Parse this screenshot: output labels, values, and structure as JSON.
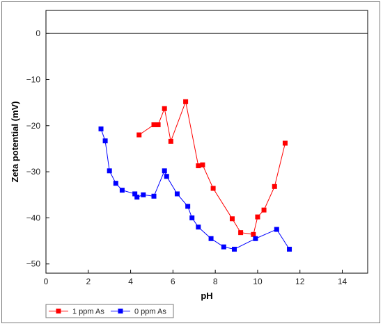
{
  "chart_data": {
    "type": "line",
    "xlabel": "pH",
    "ylabel": "Zeta potential (mV)",
    "xlim": [
      0,
      15.2
    ],
    "ylim": [
      -52,
      5
    ],
    "xticks": [
      0,
      2,
      4,
      6,
      8,
      10,
      12,
      14
    ],
    "yticks": [
      0,
      -10,
      -20,
      -30,
      -40,
      -50
    ],
    "ytick_labels": [
      "0",
      "−10",
      "−20",
      "−30",
      "−40",
      "−50"
    ],
    "reference_line_y": 0,
    "grid": false,
    "legend_position": "bottom-left",
    "series": [
      {
        "name": "1 ppm As",
        "color": "#ff0000",
        "marker": "square",
        "points": [
          [
            4.4,
            -22.0
          ],
          [
            5.1,
            -19.8
          ],
          [
            5.3,
            -19.8
          ],
          [
            5.6,
            -16.3
          ],
          [
            5.9,
            -23.4
          ],
          [
            6.6,
            -14.8
          ],
          [
            7.2,
            -28.7
          ],
          [
            7.4,
            -28.5
          ],
          [
            7.9,
            -33.6
          ],
          [
            8.8,
            -40.2
          ],
          [
            9.2,
            -43.2
          ],
          [
            9.8,
            -43.6
          ],
          [
            10.0,
            -39.8
          ],
          [
            10.3,
            -38.3
          ],
          [
            10.8,
            -33.2
          ],
          [
            11.3,
            -23.8
          ]
        ]
      },
      {
        "name": "0 ppm As",
        "color": "#0000ff",
        "marker": "square",
        "points": [
          [
            2.6,
            -20.7
          ],
          [
            2.8,
            -23.3
          ],
          [
            3.0,
            -29.8
          ],
          [
            3.3,
            -32.5
          ],
          [
            3.6,
            -34.0
          ],
          [
            4.2,
            -34.8
          ],
          [
            4.3,
            -35.5
          ],
          [
            4.6,
            -35.0
          ],
          [
            5.1,
            -35.3
          ],
          [
            5.6,
            -29.8
          ],
          [
            5.7,
            -31.0
          ],
          [
            6.2,
            -34.8
          ],
          [
            6.7,
            -37.5
          ],
          [
            6.9,
            -40.0
          ],
          [
            7.2,
            -42.0
          ],
          [
            7.8,
            -44.5
          ],
          [
            8.4,
            -46.3
          ],
          [
            8.9,
            -46.8
          ],
          [
            9.9,
            -44.5
          ],
          [
            10.9,
            -42.5
          ],
          [
            11.5,
            -46.8
          ]
        ]
      }
    ]
  }
}
